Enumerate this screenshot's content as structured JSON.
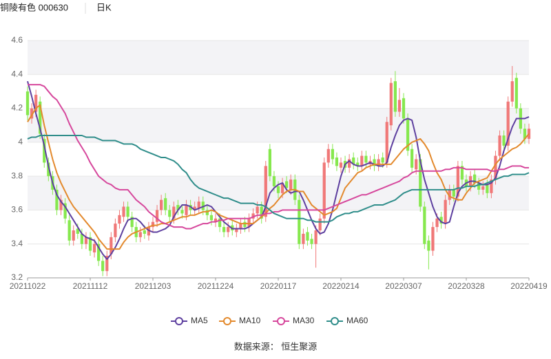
{
  "chart_data": {
    "type": "candlestick",
    "title": "铜陵有色 000630",
    "subtitle": "日K",
    "source": "数据来源：  恒生聚源",
    "categories": [
      "20211022",
      null,
      null,
      null,
      null,
      null,
      null,
      null,
      null,
      null,
      null,
      null,
      null,
      null,
      null,
      "20211112",
      null,
      null,
      null,
      null,
      null,
      null,
      null,
      null,
      null,
      null,
      null,
      null,
      null,
      null,
      "20211203",
      null,
      null,
      null,
      null,
      null,
      null,
      null,
      null,
      null,
      null,
      null,
      null,
      null,
      null,
      "20211224",
      null,
      null,
      null,
      null,
      null,
      null,
      null,
      null,
      null,
      null,
      null,
      null,
      null,
      null,
      "20220117",
      null,
      null,
      null,
      null,
      null,
      null,
      null,
      null,
      null,
      null,
      null,
      null,
      null,
      null,
      "20220214",
      null,
      null,
      null,
      null,
      null,
      null,
      null,
      null,
      null,
      null,
      null,
      null,
      null,
      null,
      "20220307",
      null,
      null,
      null,
      null,
      null,
      null,
      null,
      null,
      null,
      null,
      null,
      null,
      null,
      null,
      "20220328",
      null,
      null,
      null,
      null,
      null,
      null,
      null,
      null,
      null,
      null,
      null,
      null,
      null,
      null,
      "20220419"
    ],
    "ylim": [
      3.2,
      4.6
    ],
    "yticks": [
      3.2,
      3.4,
      3.6,
      3.8,
      4,
      4.2,
      4.4,
      4.6
    ],
    "grid": true,
    "candles": {
      "up_color": "#f07878",
      "down_color": "#86e84e",
      "open": [
        4.3,
        4.14,
        4.18,
        4.24,
        4.02,
        3.88,
        3.8,
        3.72,
        3.6,
        3.64,
        3.54,
        3.42,
        3.49,
        3.46,
        3.4,
        3.44,
        3.35,
        3.4,
        3.3,
        3.24,
        3.34,
        3.44,
        3.52,
        3.56,
        3.62,
        3.56,
        3.5,
        3.44,
        3.48,
        3.45,
        3.5,
        3.53,
        3.6,
        3.67,
        3.6,
        3.55,
        3.63,
        3.6,
        3.57,
        3.63,
        3.6,
        3.61,
        3.65,
        3.6,
        3.57,
        3.53,
        3.55,
        3.5,
        3.47,
        3.51,
        3.47,
        3.49,
        3.53,
        3.5,
        3.55,
        3.58,
        3.62,
        3.56,
        3.96,
        3.8,
        3.74,
        3.7,
        3.77,
        3.72,
        3.78,
        3.66,
        3.4,
        3.47,
        3.43,
        3.4,
        3.48,
        3.55,
        3.88,
        3.96,
        3.91,
        3.85,
        3.89,
        3.85,
        3.91,
        3.88,
        3.86,
        3.92,
        3.87,
        3.9,
        3.86,
        3.91,
        3.88,
        4.1,
        4.36,
        4.18,
        4.26,
        4.14,
        3.96,
        3.84,
        3.9,
        3.62,
        3.42,
        3.36,
        3.5,
        3.56,
        3.52,
        3.66,
        3.72,
        3.68,
        3.86,
        3.78,
        3.74,
        3.81,
        3.76,
        3.72,
        3.75,
        3.7,
        3.78,
        3.92,
        4.04,
        3.98,
        4.24,
        4.38,
        4.2,
        4.08,
        4.02
      ],
      "high": [
        4.33,
        4.23,
        4.31,
        4.27,
        4.05,
        3.91,
        3.83,
        3.75,
        3.69,
        3.67,
        3.57,
        3.51,
        3.52,
        3.49,
        3.47,
        3.47,
        3.43,
        3.43,
        3.33,
        3.36,
        3.47,
        3.55,
        3.6,
        3.65,
        3.65,
        3.59,
        3.53,
        3.5,
        3.51,
        3.53,
        3.56,
        3.63,
        3.69,
        3.7,
        3.63,
        3.65,
        3.66,
        3.63,
        3.66,
        3.66,
        3.65,
        3.68,
        3.68,
        3.63,
        3.6,
        3.58,
        3.58,
        3.53,
        3.53,
        3.54,
        3.52,
        3.55,
        3.56,
        3.58,
        3.61,
        3.65,
        3.65,
        3.89,
        3.99,
        3.83,
        3.77,
        3.79,
        3.8,
        3.81,
        3.81,
        3.69,
        3.49,
        3.5,
        3.46,
        3.51,
        3.58,
        3.91,
        3.99,
        3.99,
        3.94,
        3.91,
        3.92,
        3.93,
        3.94,
        3.91,
        3.95,
        3.95,
        3.92,
        3.93,
        3.93,
        3.94,
        4.15,
        4.38,
        4.42,
        4.32,
        4.29,
        4.17,
        3.99,
        3.93,
        3.93,
        3.65,
        3.45,
        3.53,
        3.58,
        3.59,
        3.69,
        3.75,
        3.75,
        3.89,
        3.89,
        3.81,
        3.83,
        3.84,
        3.79,
        3.77,
        3.78,
        3.81,
        3.95,
        4.07,
        4.07,
        4.27,
        4.45,
        4.41,
        4.23,
        4.11,
        4.11
      ],
      "low": [
        4.13,
        4.11,
        4.15,
        4.02,
        3.85,
        3.77,
        3.69,
        3.57,
        3.57,
        3.52,
        3.39,
        3.39,
        3.43,
        3.37,
        3.37,
        3.33,
        3.32,
        3.27,
        3.21,
        3.21,
        3.31,
        3.41,
        3.49,
        3.53,
        3.53,
        3.47,
        3.41,
        3.41,
        3.43,
        3.42,
        3.47,
        3.5,
        3.57,
        3.57,
        3.53,
        3.52,
        3.57,
        3.55,
        3.54,
        3.57,
        3.57,
        3.58,
        3.57,
        3.54,
        3.51,
        3.5,
        3.47,
        3.44,
        3.44,
        3.45,
        3.44,
        3.46,
        3.47,
        3.47,
        3.52,
        3.55,
        3.52,
        3.53,
        3.77,
        3.71,
        3.67,
        3.67,
        3.7,
        3.69,
        3.63,
        3.37,
        3.37,
        3.39,
        3.37,
        3.26,
        3.45,
        3.52,
        3.85,
        3.87,
        3.83,
        3.82,
        3.82,
        3.82,
        3.84,
        3.83,
        3.83,
        3.85,
        3.84,
        3.83,
        3.83,
        3.85,
        3.85,
        4.07,
        4.15,
        4.15,
        4.11,
        3.92,
        3.82,
        3.81,
        3.59,
        3.37,
        3.25,
        3.33,
        3.47,
        3.49,
        3.49,
        3.63,
        3.65,
        3.65,
        3.75,
        3.71,
        3.71,
        3.73,
        3.69,
        3.69,
        3.67,
        3.67,
        3.75,
        3.89,
        3.95,
        3.95,
        4.21,
        4.17,
        4.05,
        3.99,
        3.99
      ],
      "close": [
        4.16,
        4.2,
        4.28,
        4.05,
        3.88,
        3.8,
        3.72,
        3.6,
        3.66,
        3.55,
        3.42,
        3.48,
        3.46,
        3.4,
        3.44,
        3.36,
        3.4,
        3.3,
        3.24,
        3.33,
        3.44,
        3.52,
        3.57,
        3.62,
        3.56,
        3.5,
        3.44,
        3.47,
        3.46,
        3.5,
        3.53,
        3.6,
        3.66,
        3.6,
        3.56,
        3.62,
        3.6,
        3.58,
        3.63,
        3.6,
        3.62,
        3.65,
        3.6,
        3.57,
        3.54,
        3.55,
        3.5,
        3.47,
        3.5,
        3.48,
        3.49,
        3.52,
        3.5,
        3.55,
        3.58,
        3.62,
        3.55,
        3.86,
        3.8,
        3.74,
        3.7,
        3.76,
        3.73,
        3.78,
        3.66,
        3.4,
        3.46,
        3.42,
        3.4,
        3.48,
        3.55,
        3.88,
        3.96,
        3.9,
        3.86,
        3.88,
        3.85,
        3.9,
        3.87,
        3.86,
        3.92,
        3.88,
        3.89,
        3.86,
        3.9,
        3.88,
        4.12,
        4.35,
        4.18,
        4.25,
        4.14,
        3.95,
        3.85,
        3.9,
        3.62,
        3.4,
        3.36,
        3.5,
        3.55,
        3.52,
        3.66,
        3.72,
        3.68,
        3.86,
        3.78,
        3.74,
        3.8,
        3.76,
        3.72,
        3.74,
        3.7,
        3.78,
        3.92,
        4.04,
        3.98,
        4.24,
        4.36,
        4.2,
        4.08,
        4.02,
        4.08
      ]
    },
    "series": [
      {
        "name": "MA5",
        "color": "#5d3f9f",
        "values": [
          4.36,
          4.27,
          4.17,
          4.08,
          3.98,
          3.86,
          3.76,
          3.69,
          3.65,
          3.62,
          3.58,
          3.54,
          3.5,
          3.46,
          3.44,
          3.43,
          3.42,
          3.38,
          3.34,
          3.31,
          3.34,
          3.38,
          3.43,
          3.49,
          3.54,
          3.55,
          3.55,
          3.53,
          3.5,
          3.48,
          3.47,
          3.47,
          3.48,
          3.49,
          3.51,
          3.56,
          3.6,
          3.63,
          3.63,
          3.62,
          3.6,
          3.61,
          3.62,
          3.63,
          3.62,
          3.59,
          3.56,
          3.53,
          3.51,
          3.49,
          3.49,
          3.49,
          3.49,
          3.5,
          3.52,
          3.54,
          3.56,
          3.62,
          3.7,
          3.73,
          3.75,
          3.76,
          3.72,
          3.7,
          3.71,
          3.71,
          3.66,
          3.6,
          3.54,
          3.49,
          3.46,
          3.47,
          3.52,
          3.6,
          3.7,
          3.8,
          3.87,
          3.89,
          3.87,
          3.86,
          3.86,
          3.87,
          3.88,
          3.87,
          3.86,
          3.86,
          3.88,
          3.97,
          4.04,
          4.1,
          4.13,
          4.14,
          4.13,
          4.03,
          3.89,
          3.78,
          3.7,
          3.62,
          3.56,
          3.53,
          3.52,
          3.53,
          3.62,
          3.7,
          3.74,
          3.76,
          3.77,
          3.77,
          3.76,
          3.75,
          3.75,
          3.76,
          3.79,
          3.86,
          3.95,
          4.02,
          4.09,
          4.14,
          4.14,
          4.14,
          4.15
        ]
      },
      {
        "name": "MA10",
        "color": "#e3892c",
        "values": [
          4.12,
          4.16,
          4.2,
          4.22,
          4.1,
          4.0,
          3.9,
          3.82,
          3.76,
          3.71,
          3.66,
          3.62,
          3.59,
          3.56,
          3.53,
          3.5,
          3.47,
          3.43,
          3.4,
          3.37,
          3.37,
          3.37,
          3.37,
          3.41,
          3.44,
          3.46,
          3.47,
          3.48,
          3.49,
          3.5,
          3.51,
          3.51,
          3.52,
          3.52,
          3.53,
          3.54,
          3.55,
          3.56,
          3.56,
          3.57,
          3.57,
          3.58,
          3.59,
          3.59,
          3.6,
          3.59,
          3.57,
          3.56,
          3.55,
          3.54,
          3.53,
          3.52,
          3.52,
          3.52,
          3.52,
          3.54,
          3.56,
          3.58,
          3.61,
          3.63,
          3.66,
          3.69,
          3.71,
          3.72,
          3.72,
          3.71,
          3.71,
          3.67,
          3.63,
          3.61,
          3.59,
          3.57,
          3.58,
          3.59,
          3.61,
          3.67,
          3.73,
          3.76,
          3.79,
          3.82,
          3.83,
          3.85,
          3.86,
          3.87,
          3.87,
          3.87,
          3.87,
          3.87,
          3.9,
          3.93,
          3.96,
          3.98,
          4.0,
          4.01,
          4.02,
          3.99,
          3.95,
          3.88,
          3.82,
          3.78,
          3.72,
          3.68,
          3.67,
          3.66,
          3.66,
          3.7,
          3.73,
          3.76,
          3.77,
          3.78,
          3.79,
          3.83,
          3.87,
          3.9,
          3.92,
          3.94,
          3.96,
          3.97,
          3.99,
          4.02,
          4.05
        ]
      },
      {
        "name": "MA30",
        "color": "#d6479c",
        "values": [
          4.34,
          4.34,
          4.34,
          4.34,
          4.33,
          4.3,
          4.27,
          4.25,
          4.21,
          4.17,
          4.11,
          4.06,
          4.01,
          3.97,
          3.93,
          3.88,
          3.84,
          3.8,
          3.78,
          3.76,
          3.75,
          3.73,
          3.72,
          3.72,
          3.72,
          3.69,
          3.66,
          3.64,
          3.62,
          3.59,
          3.57,
          3.55,
          3.53,
          3.52,
          3.51,
          3.5,
          3.5,
          3.5,
          3.49,
          3.49,
          3.5,
          3.51,
          3.52,
          3.52,
          3.53,
          3.53,
          3.54,
          3.54,
          3.55,
          3.55,
          3.55,
          3.55,
          3.55,
          3.55,
          3.56,
          3.57,
          3.57,
          3.58,
          3.58,
          3.59,
          3.59,
          3.6,
          3.6,
          3.6,
          3.6,
          3.6,
          3.6,
          3.6,
          3.6,
          3.6,
          3.6,
          3.6,
          3.61,
          3.62,
          3.63,
          3.64,
          3.65,
          3.66,
          3.67,
          3.68,
          3.69,
          3.69,
          3.7,
          3.71,
          3.72,
          3.73,
          3.74,
          3.75,
          3.76,
          3.77,
          3.79,
          3.8,
          3.82,
          3.83,
          3.83,
          3.83,
          3.83,
          3.83,
          3.83,
          3.83,
          3.84,
          3.84,
          3.85,
          3.85,
          3.85,
          3.84,
          3.84,
          3.84,
          3.84,
          3.84,
          3.84,
          3.83,
          3.83,
          3.84,
          3.84,
          3.85,
          3.86,
          3.86,
          3.86,
          3.85,
          3.85
        ]
      },
      {
        "name": "MA60",
        "color": "#2f8d8a",
        "values": [
          4.02,
          4.03,
          4.03,
          4.04,
          4.04,
          4.04,
          4.04,
          4.04,
          4.04,
          4.04,
          4.04,
          4.04,
          4.04,
          4.04,
          4.03,
          4.03,
          4.03,
          4.02,
          4.01,
          4.01,
          4.01,
          4.01,
          4.0,
          3.99,
          3.99,
          3.99,
          3.98,
          3.96,
          3.95,
          3.94,
          3.93,
          3.92,
          3.91,
          3.91,
          3.9,
          3.89,
          3.87,
          3.84,
          3.82,
          3.78,
          3.75,
          3.73,
          3.72,
          3.71,
          3.7,
          3.69,
          3.68,
          3.67,
          3.67,
          3.66,
          3.65,
          3.64,
          3.64,
          3.64,
          3.64,
          3.63,
          3.63,
          3.62,
          3.6,
          3.58,
          3.57,
          3.56,
          3.55,
          3.55,
          3.55,
          3.55,
          3.55,
          3.54,
          3.54,
          3.53,
          3.53,
          3.53,
          3.53,
          3.54,
          3.56,
          3.57,
          3.58,
          3.58,
          3.59,
          3.59,
          3.6,
          3.61,
          3.62,
          3.63,
          3.63,
          3.63,
          3.64,
          3.65,
          3.66,
          3.68,
          3.7,
          3.71,
          3.72,
          3.72,
          3.72,
          3.72,
          3.72,
          3.72,
          3.72,
          3.72,
          3.72,
          3.72,
          3.72,
          3.73,
          3.73,
          3.74,
          3.74,
          3.74,
          3.75,
          3.75,
          3.76,
          3.77,
          3.78,
          3.79,
          3.8,
          3.8,
          3.81,
          3.81,
          3.81,
          3.81,
          3.82
        ]
      }
    ]
  }
}
